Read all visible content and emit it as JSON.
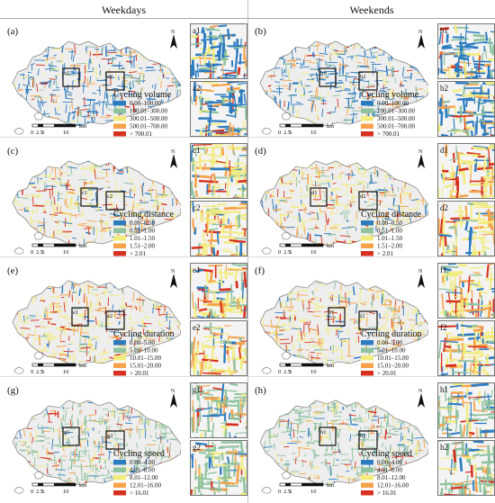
{
  "headers": {
    "weekdays": "Weekdays",
    "weekends": "Weekends"
  },
  "common": {
    "scale_ticks": [
      "0",
      "2.5",
      "5",
      "10"
    ],
    "scale_unit": "km",
    "north": "N"
  },
  "colors": {
    "c1": "#2b7bc1",
    "c2": "#8fc29e",
    "c3": "#f2ec7e",
    "c4": "#f5a24a",
    "c5": "#d7301f",
    "base": "#eeeeee",
    "outline": "#888888"
  },
  "panels": [
    {
      "id": "a",
      "label": "(a)",
      "dominant": 0,
      "legend_title": "Cycling volume",
      "legend": [
        "0.00–100.00",
        "100.01–300.00",
        "300.01–500.00",
        "500.01–700.00",
        "> 700.01"
      ],
      "insets": [
        "a1",
        "a2"
      ]
    },
    {
      "id": "b",
      "label": "(b)",
      "dominant": 0,
      "legend_title": "Cycling volume",
      "legend": [
        "0.00–100.00",
        "100.01–300.00",
        "300.01–500.00",
        "500.01–700.00",
        "> 700.01"
      ],
      "insets": [
        "b1",
        "b2"
      ]
    },
    {
      "id": "c",
      "label": "(c)",
      "dominant": 2,
      "legend_title": "Cycling distance",
      "legend": [
        "0.00–0.50",
        "0.51–1.00",
        "1.01–1.50",
        "1.51–2.00",
        "> 2.01"
      ],
      "insets": [
        "c1",
        "c2"
      ]
    },
    {
      "id": "d",
      "label": "(d)",
      "dominant": 2,
      "legend_title": "Cycling distance",
      "legend": [
        "0.00–0.50",
        "0.51–1.00",
        "1.01–1.50",
        "1.51–2.00",
        "> 2.01"
      ],
      "insets": [
        "d1",
        "d2"
      ]
    },
    {
      "id": "e",
      "label": "(e)",
      "dominant": 2,
      "legend_title": "Cycling duration",
      "legend": [
        "0.00–5.00",
        "5.01–10.00",
        "10.01–15.00",
        "15.01–20.00",
        "> 20.01"
      ],
      "insets": [
        "e1",
        "e2"
      ]
    },
    {
      "id": "f",
      "label": "(f)",
      "dominant": 2,
      "legend_title": "Cycling duration",
      "legend": [
        "0.00–5.00",
        "5.01–10.00",
        "10.01–15.00",
        "15.01–20.00",
        "> 20.01"
      ],
      "insets": [
        "f1",
        "f2"
      ]
    },
    {
      "id": "g",
      "label": "(g)",
      "dominant": 1,
      "legend_title": "Cycling speed",
      "legend": [
        "0.00–4.00",
        "4.01–8.00",
        "8.01–12.00",
        "12.01–16.00",
        "> 16.01"
      ],
      "insets": [
        "g1",
        "g2"
      ]
    },
    {
      "id": "h",
      "label": "(h)",
      "dominant": 1,
      "legend_title": "Cycling speed",
      "legend": [
        "0.00–4.00",
        "4.01–8.00",
        "8.01–12.00",
        "12.01–16.00",
        "> 16.01"
      ],
      "insets": [
        "h1",
        "h2"
      ]
    }
  ]
}
